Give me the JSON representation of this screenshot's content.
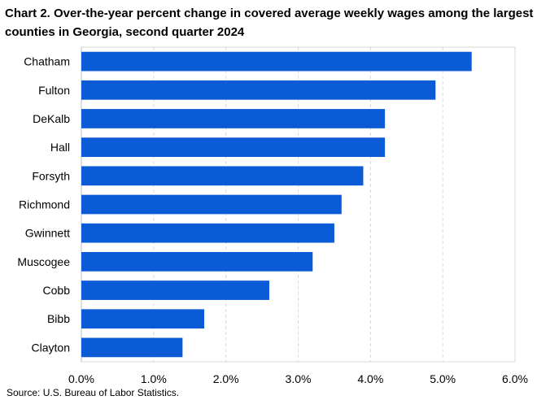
{
  "chart_data": {
    "type": "bar",
    "orientation": "horizontal",
    "title": "Chart 2. Over-the-year percent change in covered average weekly wages among the largest counties in Georgia, second quarter 2024",
    "categories": [
      "Chatham",
      "Fulton",
      "DeKalb",
      "Hall",
      "Forsyth",
      "Richmond",
      "Gwinnett",
      "Muscogee",
      "Cobb",
      "Bibb",
      "Clayton"
    ],
    "values": [
      5.4,
      4.9,
      4.2,
      4.2,
      3.9,
      3.6,
      3.5,
      3.2,
      2.6,
      1.7,
      1.4
    ],
    "xlim": [
      0,
      6
    ],
    "x_ticks": [
      "0.0%",
      "1.0%",
      "2.0%",
      "3.0%",
      "4.0%",
      "5.0%",
      "6.0%"
    ],
    "xlabel": "",
    "ylabel": "",
    "grid": "vertical dashed",
    "bar_color": "#0b5ad6",
    "source": "Source: U.S. Bureau of Labor Statistics."
  }
}
